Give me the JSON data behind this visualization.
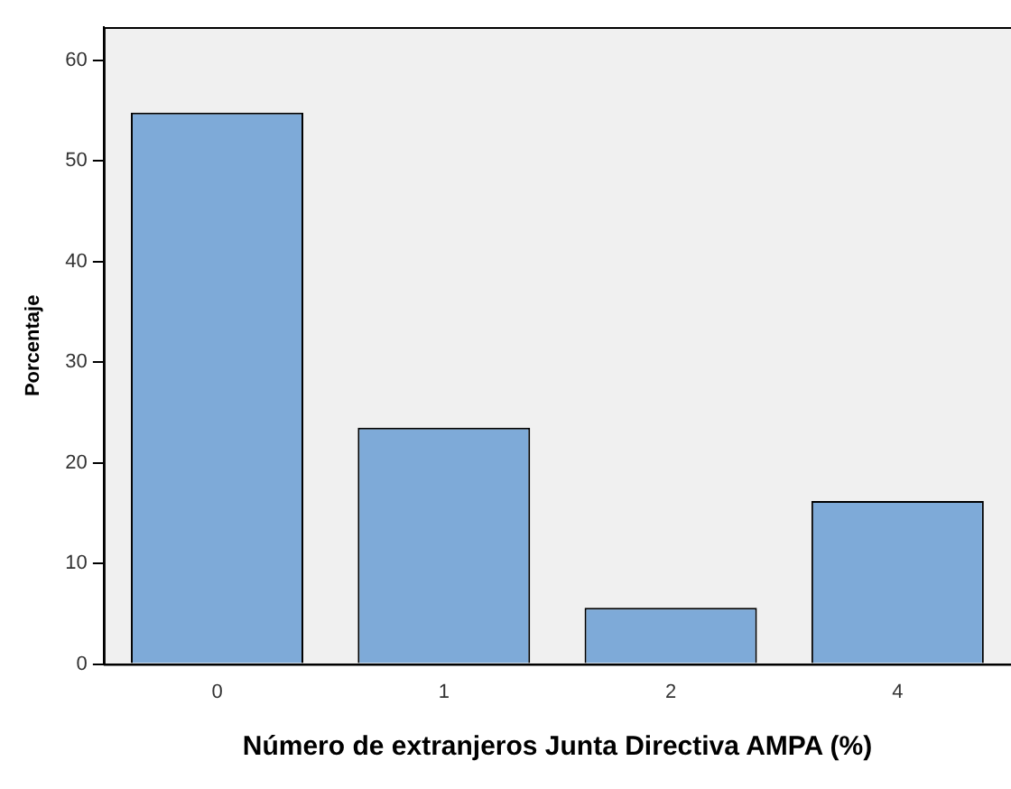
{
  "chart_data": {
    "type": "bar",
    "xlabel": "Número de extranjeros Junta Directiva AMPA (%)",
    "ylabel": "Porcentaje",
    "categories": [
      "0",
      "1",
      "2",
      "4"
    ],
    "values": [
      54.8,
      23.5,
      5.6,
      16.2
    ],
    "color": "#7eaad8",
    "ylim": [
      0,
      63.3
    ],
    "yticks": [
      0,
      10,
      20,
      30,
      40,
      50,
      60
    ],
    "grid": false,
    "legend": false
  }
}
